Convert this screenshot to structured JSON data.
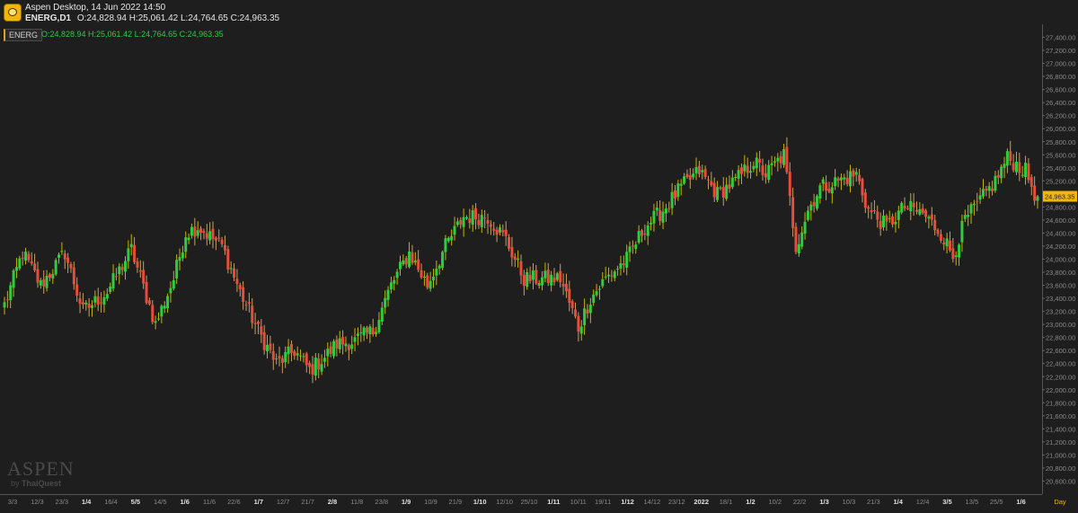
{
  "window": {
    "title": "Aspen Desktop, 14 Jun 2022 14:50",
    "symbol_label": "ENERG,D1",
    "ohlc_text": "O:24,828.94 H:25,061.42 L:24,764.65 C:24,963.35"
  },
  "legend": {
    "badge": "ENERG",
    "ohlc_text": "O:24,828.94  H:25,061.42  L:24,764.65  C:24,963.35"
  },
  "watermark": {
    "main": "ASPEN",
    "by": "by",
    "brand": "ThaiQuest"
  },
  "colors": {
    "background": "#1e1e1e",
    "up": "#2ecc40",
    "down": "#e74c3c",
    "wick_up": "#c8b400",
    "wick_down": "#c8a060",
    "last_price_bg": "#f2b705",
    "axis_text": "#8a8a8a"
  },
  "chart_data": {
    "type": "candlestick",
    "symbol": "ENERG",
    "timeframe": "D1",
    "ylim": [
      20400,
      27600
    ],
    "yticks": [
      20600,
      20800,
      21000,
      21200,
      21400,
      21600,
      21800,
      22000,
      22200,
      22400,
      22600,
      22800,
      23000,
      23200,
      23400,
      23600,
      23800,
      24000,
      24200,
      24400,
      24600,
      24800,
      25000,
      25200,
      25400,
      25600,
      25800,
      26000,
      26200,
      26400,
      26600,
      26800,
      27000,
      27200,
      27400
    ],
    "ytick_labels": [
      "20,600.00",
      "20,800.00",
      "21,000.00",
      "21,200.00",
      "21,400.00",
      "21,600.00",
      "21,800.00",
      "22,000.00",
      "22,200.00",
      "22,400.00",
      "22,600.00",
      "22,800.00",
      "23,000.00",
      "23,200.00",
      "23,400.00",
      "23,600.00",
      "23,800.00",
      "24,000.00",
      "24,200.00",
      "24,400.00",
      "24,600.00",
      "24,800.00",
      "25,000.00",
      "25,200.00",
      "25,400.00",
      "25,600.00",
      "25,800.00",
      "26,000.00",
      "26,200.00",
      "26,400.00",
      "26,600.00",
      "26,800.00",
      "27,000.00",
      "27,200.00",
      "27,400.00"
    ],
    "xtick_labels": [
      {
        "label": "3/3",
        "bold": false
      },
      {
        "label": "12/3",
        "bold": false
      },
      {
        "label": "23/3",
        "bold": false
      },
      {
        "label": "1/4",
        "bold": true
      },
      {
        "label": "16/4",
        "bold": false
      },
      {
        "label": "5/5",
        "bold": true
      },
      {
        "label": "14/5",
        "bold": false
      },
      {
        "label": "1/6",
        "bold": true
      },
      {
        "label": "11/6",
        "bold": false
      },
      {
        "label": "22/6",
        "bold": false
      },
      {
        "label": "1/7",
        "bold": true
      },
      {
        "label": "12/7",
        "bold": false
      },
      {
        "label": "21/7",
        "bold": false
      },
      {
        "label": "2/8",
        "bold": true
      },
      {
        "label": "11/8",
        "bold": false
      },
      {
        "label": "23/8",
        "bold": false
      },
      {
        "label": "1/9",
        "bold": true
      },
      {
        "label": "10/9",
        "bold": false
      },
      {
        "label": "21/9",
        "bold": false
      },
      {
        "label": "1/10",
        "bold": true
      },
      {
        "label": "12/10",
        "bold": false
      },
      {
        "label": "25/10",
        "bold": false
      },
      {
        "label": "1/11",
        "bold": true
      },
      {
        "label": "10/11",
        "bold": false
      },
      {
        "label": "19/11",
        "bold": false
      },
      {
        "label": "1/12",
        "bold": true
      },
      {
        "label": "14/12",
        "bold": false
      },
      {
        "label": "23/12",
        "bold": false
      },
      {
        "label": "2022",
        "bold": true
      },
      {
        "label": "18/1",
        "bold": false
      },
      {
        "label": "1/2",
        "bold": true
      },
      {
        "label": "10/2",
        "bold": false
      },
      {
        "label": "22/2",
        "bold": false
      },
      {
        "label": "1/3",
        "bold": true
      },
      {
        "label": "10/3",
        "bold": false
      },
      {
        "label": "21/3",
        "bold": false
      },
      {
        "label": "1/4",
        "bold": true
      },
      {
        "label": "12/4",
        "bold": false
      },
      {
        "label": "3/5",
        "bold": true
      },
      {
        "label": "13/5",
        "bold": false
      },
      {
        "label": "25/5",
        "bold": false
      },
      {
        "label": "1/6",
        "bold": true
      }
    ],
    "period_label": "Day",
    "last_price": 24963.35,
    "last_price_label": "24,963.35",
    "anchors": [
      [
        0,
        23300
      ],
      [
        6,
        24100
      ],
      [
        12,
        23600
      ],
      [
        20,
        24100
      ],
      [
        26,
        23200
      ],
      [
        34,
        23500
      ],
      [
        42,
        24150
      ],
      [
        50,
        23000
      ],
      [
        56,
        23700
      ],
      [
        60,
        24400
      ],
      [
        64,
        24500
      ],
      [
        72,
        24200
      ],
      [
        78,
        23500
      ],
      [
        84,
        22900
      ],
      [
        90,
        22400
      ],
      [
        96,
        22600
      ],
      [
        101,
        22300
      ],
      [
        106,
        22500
      ],
      [
        110,
        22700
      ],
      [
        116,
        22750
      ],
      [
        122,
        22900
      ],
      [
        128,
        23600
      ],
      [
        134,
        24100
      ],
      [
        140,
        23600
      ],
      [
        146,
        24200
      ],
      [
        152,
        24650
      ],
      [
        160,
        24650
      ],
      [
        166,
        24300
      ],
      [
        172,
        23700
      ],
      [
        178,
        23700
      ],
      [
        184,
        23700
      ],
      [
        190,
        22950
      ],
      [
        194,
        23400
      ],
      [
        199,
        23700
      ],
      [
        206,
        24000
      ],
      [
        212,
        24500
      ],
      [
        218,
        24750
      ],
      [
        224,
        25100
      ],
      [
        230,
        25350
      ],
      [
        236,
        25000
      ],
      [
        242,
        25200
      ],
      [
        248,
        25500
      ],
      [
        252,
        25300
      ],
      [
        258,
        25600
      ],
      [
        262,
        24200
      ],
      [
        266,
        24750
      ],
      [
        270,
        25100
      ],
      [
        276,
        25200
      ],
      [
        282,
        25300
      ],
      [
        286,
        24750
      ],
      [
        292,
        24500
      ],
      [
        298,
        24800
      ],
      [
        304,
        24700
      ],
      [
        310,
        24400
      ],
      [
        314,
        24050
      ],
      [
        318,
        24600
      ],
      [
        324,
        24950
      ],
      [
        328,
        25200
      ],
      [
        332,
        25550
      ],
      [
        338,
        25350
      ],
      [
        342,
        24900
      ]
    ]
  }
}
